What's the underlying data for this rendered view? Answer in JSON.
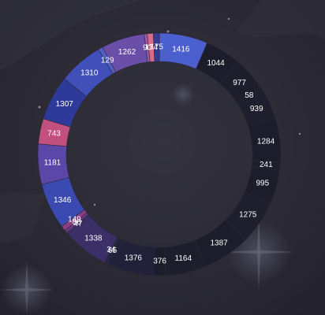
{
  "chart_data": {
    "type": "pie",
    "variant": "donut",
    "title": "",
    "legend": "none",
    "slices": [
      {
        "label": "1416",
        "value": 1416,
        "color": "#4c5fcf"
      },
      {
        "label": "1044",
        "value": 1044,
        "color": "#1c1c2a"
      },
      {
        "label": "977",
        "value": 977,
        "color": "#1e1d2c"
      },
      {
        "label": "58",
        "value": 58,
        "color": "#1c1c2a"
      },
      {
        "label": "939",
        "value": 939,
        "color": "#1f1e2d"
      },
      {
        "label": "1284",
        "value": 1284,
        "color": "#1c1c2a"
      },
      {
        "label": "241",
        "value": 241,
        "color": "#1e1d2c"
      },
      {
        "label": "995",
        "value": 995,
        "color": "#1c1c2a"
      },
      {
        "label": "1275",
        "value": 1275,
        "color": "#1f1e2d"
      },
      {
        "label": "1387",
        "value": 1387,
        "color": "#1c1c2a"
      },
      {
        "label": "1164",
        "value": 1164,
        "color": "#1e1d2c"
      },
      {
        "label": "376",
        "value": 376,
        "color": "#1c1c2a"
      },
      {
        "label": "1376",
        "value": 1376,
        "color": "#22213a"
      },
      {
        "label": "65",
        "value": 65,
        "color": "#26254a"
      },
      {
        "label": "34",
        "value": 34,
        "color": "#2a2850"
      },
      {
        "label": "1338",
        "value": 1338,
        "color": "#3a2f66"
      },
      {
        "label": "47",
        "value": 47,
        "color": "#4a3270"
      },
      {
        "label": "86",
        "value": 86,
        "color": "#6a3a82"
      },
      {
        "label": "149",
        "value": 149,
        "color": "#8a3e86"
      },
      {
        "label": "1346",
        "value": 1346,
        "color": "#3b4ab0"
      },
      {
        "label": "1181",
        "value": 1181,
        "color": "#5b47a8"
      },
      {
        "label": "743",
        "value": 743,
        "color": "#c2507e"
      },
      {
        "label": "1307",
        "value": 1307,
        "color": "#2e3a9a"
      },
      {
        "label": "1310",
        "value": 1310,
        "color": "#4050b8"
      },
      {
        "label": "129",
        "value": 129,
        "color": "#5060c6"
      },
      {
        "label": "1262",
        "value": 1262,
        "color": "#6a4ea8"
      },
      {
        "label": "90",
        "value": 90,
        "color": "#9a58a8"
      },
      {
        "label": "174",
        "value": 174,
        "color": "#d76a8a"
      },
      {
        "label": "175",
        "value": 175,
        "color": "#363a92"
      }
    ]
  }
}
